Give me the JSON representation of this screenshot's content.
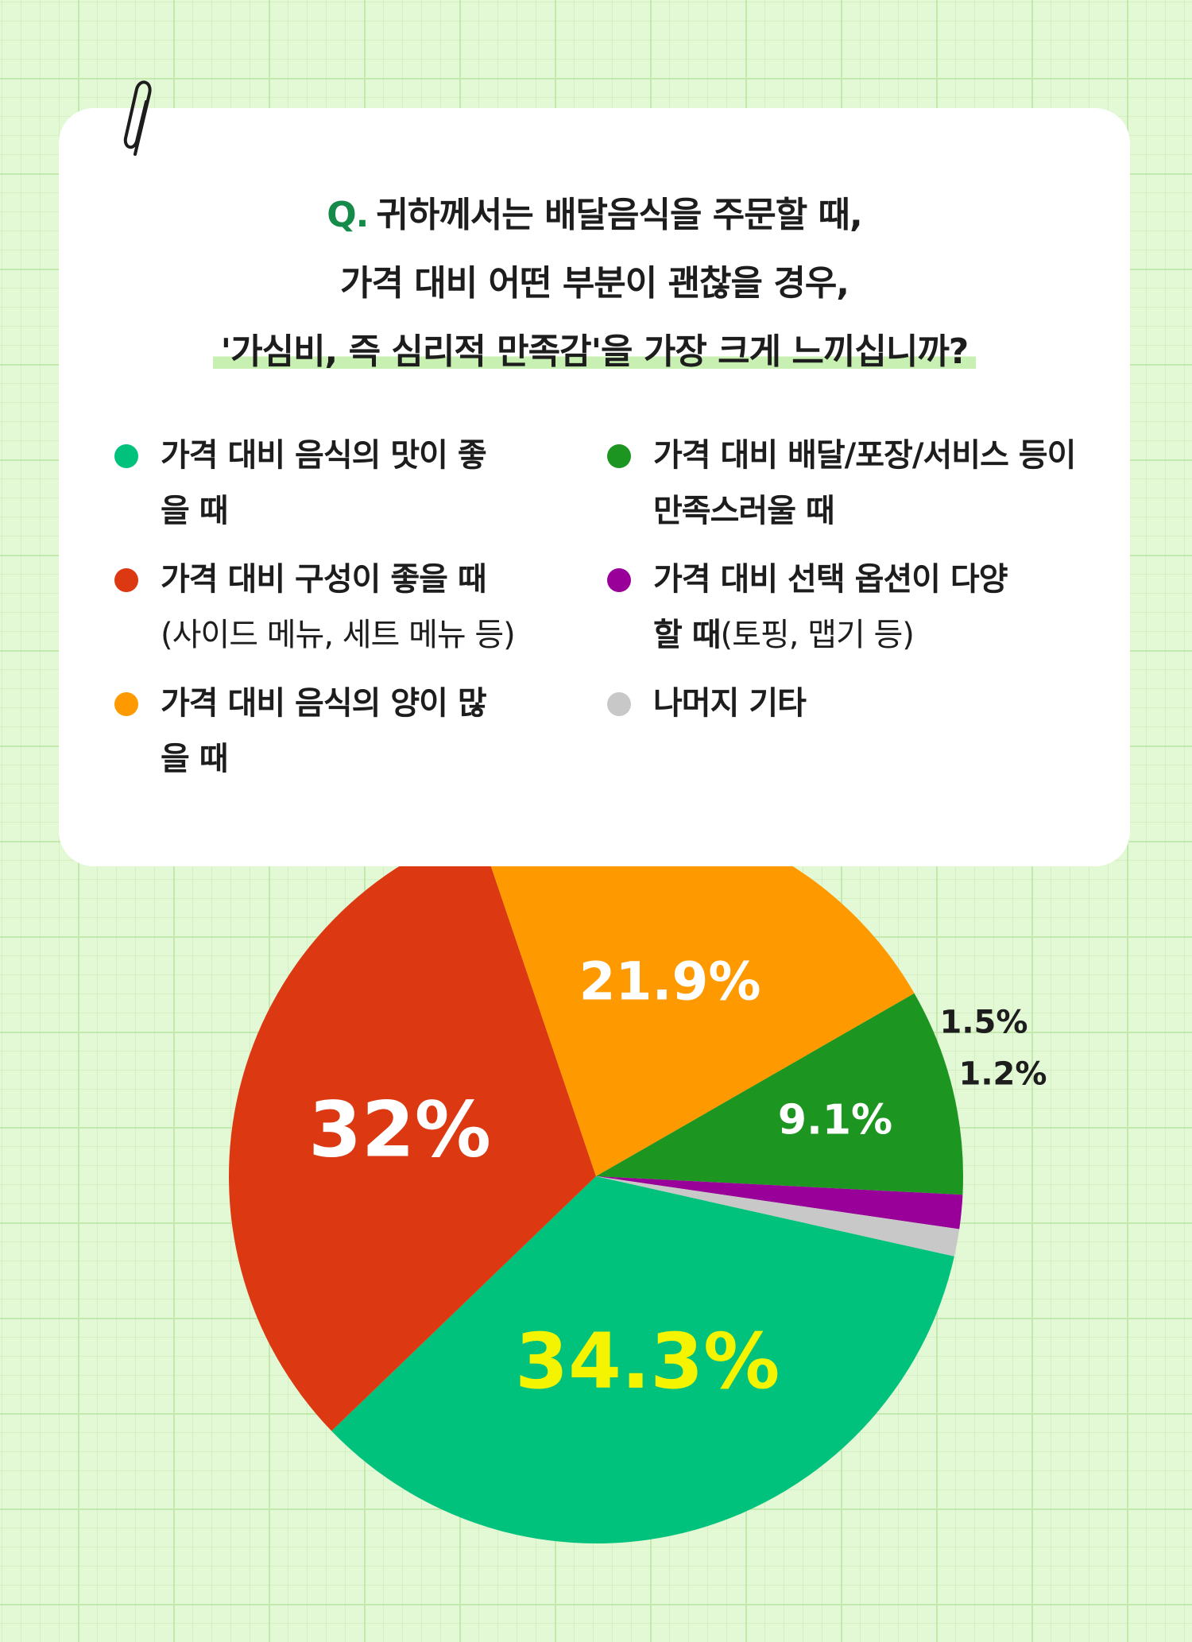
{
  "question": {
    "q_mark": "Q.",
    "line1": "귀하께서는 배달음식을 주문할 때,",
    "line2": "가격 대비 어떤 부분이 괜찮을 경우,",
    "line3": "'가심비, 즉 심리적 만족감'을 가장 크게 느끼십니까?"
  },
  "legend": [
    {
      "label": "가격 대비 음식의 맛이 좋을 때",
      "sub": "",
      "color": "#00c27d"
    },
    {
      "label": "가격 대비 배달/포장/서비스 등이 만족스러울 때",
      "sub": "",
      "color": "#1d9621"
    },
    {
      "label": "가격 대비 구성이 좋을 때",
      "sub": "(사이드 메뉴, 세트 메뉴 등)",
      "color": "#dc3913"
    },
    {
      "label": "가격 대비 선택 옵션이 다양할 때",
      "sub": "(토핑, 맵기 등)",
      "color": "#980099"
    },
    {
      "label": "가격 대비 음식의 양이 많을 때",
      "sub": "",
      "color": "#ff9900"
    },
    {
      "label": "나머지 기타",
      "sub": "",
      "color": "#c8c8c8"
    }
  ],
  "chart_data": {
    "type": "pie",
    "slices": [
      {
        "name": "가격 대비 음식의 맛이 좋을 때",
        "value": 34.3,
        "label": "34.3%",
        "color": "#00c27d",
        "label_color": "#f4f400"
      },
      {
        "name": "가격 대비 구성이 좋을 때",
        "value": 32,
        "label": "32%",
        "color": "#dc3913",
        "label_color": "#ffffff"
      },
      {
        "name": "가격 대비 음식의 양이 많을 때",
        "value": 21.9,
        "label": "21.9%",
        "color": "#ff9900",
        "label_color": "#ffffff"
      },
      {
        "name": "가격 대비 배달/포장/서비스 등이 만족스러울 때",
        "value": 9.1,
        "label": "9.1%",
        "color": "#1d9621",
        "label_color": "#ffffff"
      },
      {
        "name": "가격 대비 선택 옵션이 다양할 때",
        "value": 1.5,
        "label": "1.5%",
        "color": "#980099",
        "label_color": "#1d1d1d"
      },
      {
        "name": "나머지 기타",
        "value": 1.2,
        "label": "1.2%",
        "color": "#c8c8c8",
        "label_color": "#1d1d1d"
      }
    ]
  }
}
